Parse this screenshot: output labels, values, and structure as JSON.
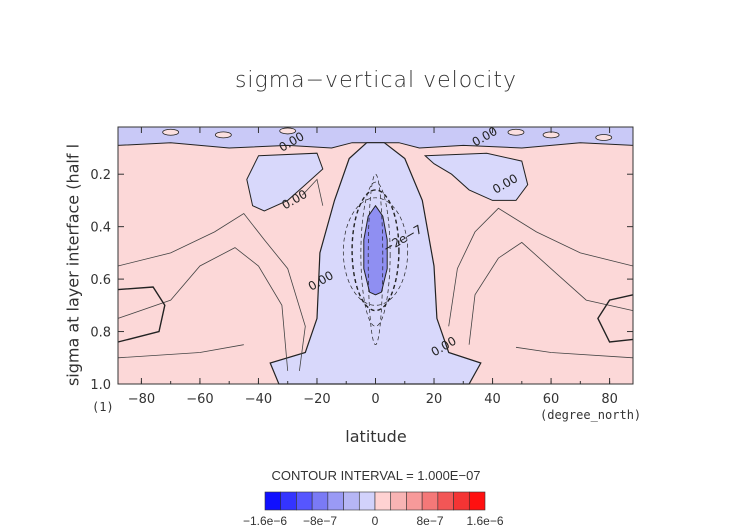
{
  "chart_data": {
    "type": "contour",
    "title": "sigma−vertical velocity",
    "xlabel": "latitude",
    "x_unit": "(degree_north)",
    "ylabel": "sigma at layer interface (half l",
    "y_unit": "(1)",
    "xlim": [
      -88,
      88
    ],
    "ylim": [
      0.02,
      1.0
    ],
    "y_inverted": true,
    "x_ticks": [
      -80,
      -60,
      -40,
      -20,
      0,
      20,
      40,
      60,
      80
    ],
    "y_ticks": [
      0.2,
      0.4,
      0.6,
      0.8,
      1.0
    ],
    "x_tick_labels": [
      "−80",
      "−60",
      "−40",
      "−20",
      "0",
      "20",
      "40",
      "60",
      "80"
    ],
    "y_tick_labels": [
      "0.2",
      "0.4",
      "0.6",
      "0.8",
      "1.0"
    ],
    "contour_interval": "CONTOUR INTERVAL = 1.000E−07",
    "contour_labels": [
      {
        "text": "0.00",
        "lat": -28,
        "sigma": 0.09
      },
      {
        "text": "0.00",
        "lat": -27,
        "sigma": 0.31
      },
      {
        "text": "0.00",
        "lat": -18,
        "sigma": 0.62
      },
      {
        "text": "−2e−7",
        "lat": 10,
        "sigma": 0.46
      },
      {
        "text": "0.00",
        "lat": 38,
        "sigma": 0.07
      },
      {
        "text": "0.00",
        "lat": 45,
        "sigma": 0.25
      },
      {
        "text": "0.00",
        "lat": 24,
        "sigma": 0.87
      }
    ],
    "colorbar": {
      "tick_labels": [
        "−1.6e−6",
        "−8e−7",
        "0",
        "8e−7",
        "1.6e−6"
      ],
      "colors": [
        "#1010ff",
        "#3434ff",
        "#5656ff",
        "#7a7af5",
        "#9a9af5",
        "#b6b6f5",
        "#d2d2fb",
        "#ffd2d2",
        "#f8b4b4",
        "#f79a9a",
        "#f47878",
        "#f25656",
        "#f43434",
        "#ff1010"
      ]
    },
    "fill_colors": {
      "negative": "#d8d8fb",
      "positive": "#fcd8d8",
      "strong_negative": "#8f8ff2",
      "upper_negative": "#c9c9f7"
    }
  }
}
